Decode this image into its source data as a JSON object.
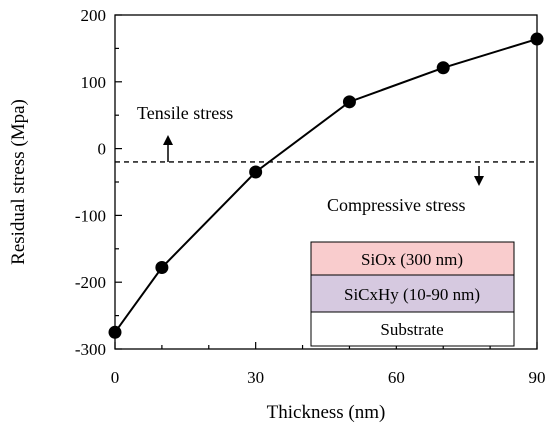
{
  "chart_data": {
    "type": "line",
    "title": "",
    "xlabel": "Thickness (nm)",
    "ylabel": "Residual stress (Mpa)",
    "xlim": [
      0,
      90
    ],
    "ylim": [
      -300,
      200
    ],
    "x_ticks": [
      "0",
      "30",
      "60",
      "90"
    ],
    "y_ticks": [
      "-300",
      "-200",
      "-100",
      "0",
      "100",
      "200"
    ],
    "grid": false,
    "series": [
      {
        "x": [
          0,
          10,
          30,
          50,
          70,
          90
        ],
        "y": [
          -275,
          -178,
          -35,
          70,
          121,
          164
        ]
      }
    ],
    "reference_line": {
      "y": -20,
      "style": "dashed"
    },
    "annotations": {
      "tensile": "Tensile stress",
      "compressive": "Compressive stress"
    },
    "layers": [
      {
        "text": "SiOx (300 nm)",
        "color": "#f9cccd"
      },
      {
        "text": "SiCxHy (10-90 nm)",
        "color": "#d6c9e0"
      },
      {
        "text": "Substrate",
        "color": "#ffffff"
      }
    ]
  }
}
